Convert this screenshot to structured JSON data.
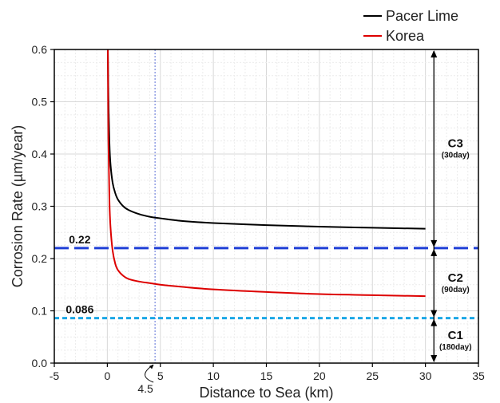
{
  "chart_data": {
    "type": "line",
    "xlabel": "Distance to Sea (km)",
    "ylabel": "Corrosion Rate (µm/year)",
    "xlim": [
      -5,
      35
    ],
    "ylim": [
      0.0,
      0.6
    ],
    "xticks": [
      -5,
      0,
      5,
      10,
      15,
      20,
      25,
      30,
      35
    ],
    "yticks": [
      0.0,
      0.1,
      0.2,
      0.3,
      0.4,
      0.5,
      0.6
    ],
    "xtick_labels": [
      "-5",
      "0",
      "5",
      "10",
      "15",
      "20",
      "25",
      "30",
      "35"
    ],
    "ytick_labels": [
      "0.0",
      "0.1",
      "0.2",
      "0.3",
      "0.4",
      "0.5",
      "0.6"
    ],
    "grid": true,
    "legend_position": "top-right",
    "series": [
      {
        "name": "Pacer Lime",
        "color": "#000000",
        "x": [
          0.05,
          0.1,
          0.2,
          0.3,
          0.5,
          0.75,
          1,
          1.5,
          2,
          3,
          4,
          5,
          7,
          10,
          15,
          20,
          25,
          30
        ],
        "y": [
          0.6,
          0.51,
          0.42,
          0.38,
          0.345,
          0.325,
          0.313,
          0.3,
          0.293,
          0.285,
          0.28,
          0.277,
          0.272,
          0.268,
          0.264,
          0.261,
          0.259,
          0.257
        ]
      },
      {
        "name": "Korea",
        "color": "#dd0000",
        "x": [
          0.05,
          0.1,
          0.2,
          0.3,
          0.5,
          0.75,
          1,
          1.5,
          2,
          3,
          4,
          5,
          7,
          10,
          15,
          20,
          25,
          30
        ],
        "y": [
          0.6,
          0.43,
          0.31,
          0.26,
          0.215,
          0.19,
          0.178,
          0.167,
          0.161,
          0.156,
          0.153,
          0.15,
          0.146,
          0.141,
          0.136,
          0.132,
          0.13,
          0.128
        ]
      }
    ],
    "reference_lines": [
      {
        "y": 0.22,
        "label": "0.22",
        "color": "#1f3fd6",
        "style": "dashed"
      },
      {
        "y": 0.086,
        "label": "0.086",
        "color": "#1aa6e6",
        "style": "dotted"
      }
    ],
    "vertical_line": {
      "x": 4.5,
      "label": "4.5",
      "color": "#5b6fd6"
    },
    "zones": [
      {
        "label": "C3",
        "sublabel": "(30day)",
        "from": 0.22,
        "to": 0.6
      },
      {
        "label": "C2",
        "sublabel": "(90day)",
        "from": 0.086,
        "to": 0.22
      },
      {
        "label": "C1",
        "sublabel": "(180day)",
        "from": 0.0,
        "to": 0.086
      }
    ]
  }
}
